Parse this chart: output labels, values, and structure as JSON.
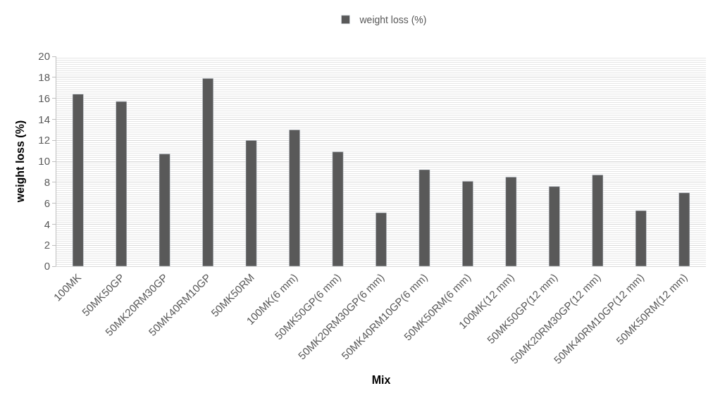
{
  "chart_data": {
    "type": "bar",
    "categories": [
      "100MK",
      "50MK50GP",
      "50MK20RM30GP",
      "50MK40RM10GP",
      "50MK50RM",
      "100MK(6 mm)",
      "50MK50GP(6 mm)",
      "50MK20RM30GP(6 mm)",
      "50MK40RM10GP(6 mm)",
      "50MK50RM(6 mm)",
      "100MK(12 mm)",
      "50MK50GP(12 mm)",
      "50MK20RM30GP(12 mm)",
      "50MK40RM10GP(12 mm)",
      "50MK50RM(12 mm)"
    ],
    "series": [
      {
        "name": "weight loss (%)",
        "color": "#595959",
        "values": [
          16.4,
          15.7,
          10.7,
          17.9,
          12.0,
          13.0,
          10.9,
          5.1,
          9.2,
          8.1,
          8.5,
          7.6,
          8.7,
          5.3,
          7.0
        ]
      }
    ],
    "xlabel": "Mix",
    "ylabel": "weight loss (%)",
    "ylim": [
      0,
      20
    ],
    "yticks": [
      0,
      2,
      4,
      6,
      8,
      10,
      12,
      14,
      16,
      18,
      20
    ],
    "grid": "y",
    "legend": "top"
  }
}
